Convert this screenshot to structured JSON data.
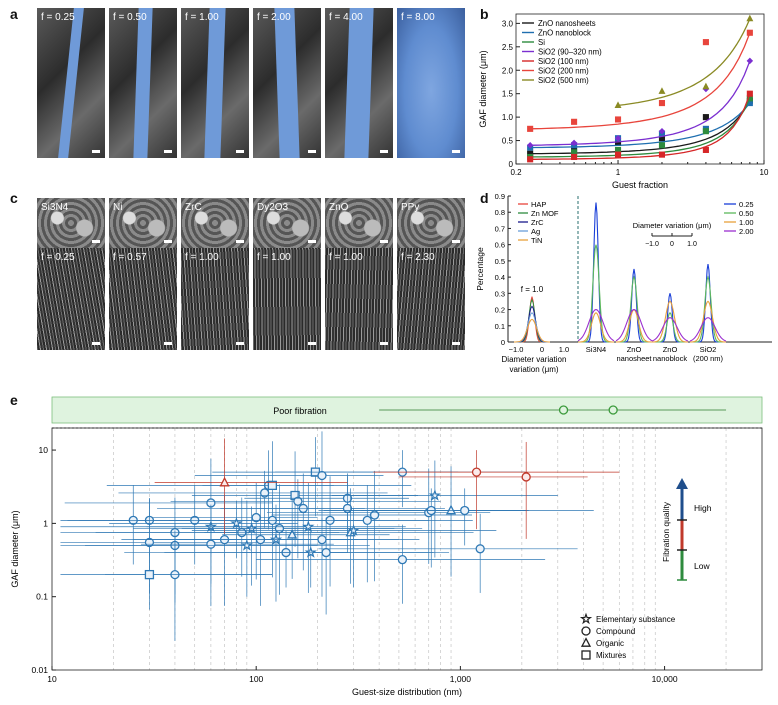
{
  "panels": {
    "a": "a",
    "b": "b",
    "c": "c",
    "d": "d",
    "e": "e"
  },
  "panel_a": {
    "tags": [
      "f = 0.25",
      "f = 0.50",
      "f = 1.00",
      "f = 2.00",
      "f = 4.00",
      "f = 8.00"
    ]
  },
  "panel_c": {
    "top_tags": [
      "Si3N4",
      "Ni",
      "ZrC",
      "Dy2O3",
      "ZnO",
      "PPy"
    ],
    "bottom_tags": [
      "f = 0.25",
      "f = 0.57",
      "f = 1.00",
      "f = 1.00",
      "f = 1.00",
      "f = 2.30"
    ]
  },
  "chart_data": [
    {
      "id": "b",
      "type": "scatter",
      "xlabel": "Guest fraction",
      "ylabel": "GAF diameter (μm)",
      "xscale": "log",
      "xlim": [
        0.2,
        10
      ],
      "ylim": [
        0,
        3.2
      ],
      "xticks": [
        "0.2",
        "1",
        "10"
      ],
      "yticks": [
        "0",
        "0.5",
        "1.0",
        "1.5",
        "2.0",
        "2.5",
        "3.0"
      ],
      "legend_position": "upper-left",
      "series": [
        {
          "name": "ZnO nanosheets",
          "color": "#1a1a1a",
          "marker": "square",
          "x": [
            0.25,
            0.5,
            1,
            2,
            4,
            8
          ],
          "y": [
            0.22,
            0.3,
            0.45,
            0.55,
            1.0,
            1.35
          ]
        },
        {
          "name": "ZnO nanoblock",
          "color": "#1f6fb0",
          "marker": "square",
          "x": [
            0.25,
            0.5,
            1,
            2,
            4,
            8
          ],
          "y": [
            0.35,
            0.4,
            0.55,
            0.65,
            0.75,
            1.3
          ]
        },
        {
          "name": "Si",
          "color": "#2e8b3e",
          "marker": "square",
          "x": [
            0.25,
            0.5,
            1,
            2,
            4,
            8
          ],
          "y": [
            0.15,
            0.25,
            0.3,
            0.4,
            0.7,
            1.4
          ]
        },
        {
          "name": "SiO2 (90–320 nm)",
          "color": "#7b2fd0",
          "marker": "diamond",
          "x": [
            0.25,
            0.5,
            1,
            2,
            4,
            8
          ],
          "y": [
            0.4,
            0.45,
            0.55,
            0.7,
            1.6,
            2.2
          ]
        },
        {
          "name": "SiO2 (100 nm)",
          "color": "#d62728",
          "marker": "square",
          "x": [
            0.25,
            0.5,
            1,
            2,
            4,
            8
          ],
          "y": [
            0.1,
            0.15,
            0.2,
            0.2,
            0.3,
            1.5
          ]
        },
        {
          "name": "SiO2 (200 nm)",
          "color": "#e8453c",
          "marker": "square",
          "x": [
            0.25,
            0.5,
            1,
            2,
            4,
            8
          ],
          "y": [
            0.75,
            0.9,
            0.95,
            1.3,
            2.6,
            2.8
          ]
        },
        {
          "name": "SiO2 (500 nm)",
          "color": "#8a8a24",
          "marker": "triangle",
          "x": [
            1,
            2,
            4,
            8
          ],
          "y": [
            1.25,
            1.55,
            1.65,
            3.1
          ]
        }
      ]
    },
    {
      "id": "d",
      "type": "line",
      "ylabel": "Percentage",
      "yticks": [
        "0",
        "0.1",
        "0.2",
        "0.3",
        "0.4",
        "0.5",
        "0.6",
        "0.7",
        "0.8",
        "0.9"
      ],
      "ylim": [
        0,
        0.9
      ],
      "left_inset_xlabel": "Diameter variation (μm)",
      "left_inset_xticks": [
        "−1.0",
        "0",
        "1.0"
      ],
      "annotation": "f = 1.0",
      "group_labels": [
        "Si3N4",
        "ZnO nanosheet",
        "ZnO nanoblock",
        "SiO2 (200 nm)"
      ],
      "legend_left": [
        {
          "name": "HAP",
          "color": "#e8453c"
        },
        {
          "name": "Zn MOF",
          "color": "#2e8b3e"
        },
        {
          "name": "ZrC",
          "color": "#1a1a8c"
        },
        {
          "name": "Ag",
          "color": "#6a9fd8"
        },
        {
          "name": "TiN",
          "color": "#e8a03c"
        }
      ],
      "legend_right": [
        {
          "name": "0.25",
          "color": "#1a3fd8"
        },
        {
          "name": "0.50",
          "color": "#5cb85c"
        },
        {
          "name": "1.00",
          "color": "#e8a03c"
        },
        {
          "name": "2.00",
          "color": "#9b30d0"
        }
      ],
      "inset_title": "Diameter variation (μm)",
      "inset_ticks": [
        "−1.0",
        "0",
        "1.0"
      ],
      "groups": [
        {
          "name": "Si3N4",
          "peaks": [
            0.86,
            0.6,
            0.18,
            0.2
          ]
        },
        {
          "name": "ZnO nanosheet",
          "peaks": [
            0.45,
            0.4,
            0.2,
            0.2
          ]
        },
        {
          "name": "ZnO nanoblock",
          "peaks": [
            0.3,
            0.18,
            0.25,
            0.15
          ]
        },
        {
          "name": "SiO2 (200 nm)",
          "peaks": [
            0.48,
            0.4,
            0.25,
            0.15
          ]
        }
      ]
    },
    {
      "id": "e",
      "type": "scatter",
      "xlabel": "Guest-size distribution (nm)",
      "ylabel": "GAF diameter (μm)",
      "xscale": "log",
      "yscale": "log",
      "xlim": [
        10,
        30000
      ],
      "ylim": [
        0.01,
        20
      ],
      "xticks": [
        "10",
        "100",
        "1,000",
        "10,000"
      ],
      "yticks": [
        "0.01",
        "0.1",
        "1",
        "10"
      ],
      "poor_fibration_label": "Poor fibration",
      "legend": [
        "Elementary substance",
        "Compound",
        "Organic",
        "Mixtures"
      ],
      "quality_labels": {
        "axis": "Fibration quality",
        "high": "High",
        "low": "Low"
      },
      "points": [
        {
          "x": 30,
          "y": 1.1,
          "m": "circle"
        },
        {
          "x": 25,
          "y": 1.1,
          "m": "circle"
        },
        {
          "x": 30,
          "y": 0.55,
          "m": "circle"
        },
        {
          "x": 40,
          "y": 0.5,
          "m": "circle"
        },
        {
          "x": 40,
          "y": 0.75,
          "m": "circle"
        },
        {
          "x": 40,
          "y": 0.2,
          "m": "circle"
        },
        {
          "x": 30,
          "y": 0.2,
          "m": "square"
        },
        {
          "x": 50,
          "y": 1.1,
          "m": "circle"
        },
        {
          "x": 60,
          "y": 1.9,
          "m": "circle"
        },
        {
          "x": 60,
          "y": 0.9,
          "m": "star"
        },
        {
          "x": 60,
          "y": 0.52,
          "m": "circle"
        },
        {
          "x": 70,
          "y": 0.6,
          "m": "circle"
        },
        {
          "x": 80,
          "y": 1.0,
          "m": "star"
        },
        {
          "x": 85,
          "y": 0.75,
          "m": "circle"
        },
        {
          "x": 90,
          "y": 0.5,
          "m": "star"
        },
        {
          "x": 95,
          "y": 0.85,
          "m": "star"
        },
        {
          "x": 100,
          "y": 1.2,
          "m": "circle"
        },
        {
          "x": 105,
          "y": 0.6,
          "m": "circle"
        },
        {
          "x": 110,
          "y": 2.6,
          "m": "circle"
        },
        {
          "x": 115,
          "y": 3.3,
          "m": "circle"
        },
        {
          "x": 120,
          "y": 3.3,
          "m": "square"
        },
        {
          "x": 120,
          "y": 1.1,
          "m": "circle"
        },
        {
          "x": 125,
          "y": 0.6,
          "m": "star"
        },
        {
          "x": 130,
          "y": 0.85,
          "m": "circle"
        },
        {
          "x": 140,
          "y": 0.4,
          "m": "circle"
        },
        {
          "x": 150,
          "y": 0.7,
          "m": "triangle"
        },
        {
          "x": 155,
          "y": 2.4,
          "m": "square"
        },
        {
          "x": 160,
          "y": 2.0,
          "m": "circle"
        },
        {
          "x": 170,
          "y": 1.6,
          "m": "circle"
        },
        {
          "x": 180,
          "y": 0.9,
          "m": "star"
        },
        {
          "x": 185,
          "y": 0.4,
          "m": "star"
        },
        {
          "x": 195,
          "y": 5.0,
          "m": "square"
        },
        {
          "x": 210,
          "y": 4.5,
          "m": "circle"
        },
        {
          "x": 210,
          "y": 0.6,
          "m": "circle"
        },
        {
          "x": 220,
          "y": 0.4,
          "m": "circle"
        },
        {
          "x": 230,
          "y": 1.1,
          "m": "circle"
        },
        {
          "x": 280,
          "y": 2.2,
          "m": "circle"
        },
        {
          "x": 280,
          "y": 1.6,
          "m": "circle"
        },
        {
          "x": 290,
          "y": 0.75,
          "m": "triangle"
        },
        {
          "x": 300,
          "y": 0.8,
          "m": "star"
        },
        {
          "x": 350,
          "y": 1.1,
          "m": "circle"
        },
        {
          "x": 380,
          "y": 1.3,
          "m": "circle"
        },
        {
          "x": 520,
          "y": 5.0,
          "m": "circle"
        },
        {
          "x": 520,
          "y": 0.32,
          "m": "circle"
        },
        {
          "x": 700,
          "y": 1.4,
          "m": "circle"
        },
        {
          "x": 720,
          "y": 1.5,
          "m": "circle"
        },
        {
          "x": 750,
          "y": 2.4,
          "m": "star"
        },
        {
          "x": 900,
          "y": 1.5,
          "m": "triangle"
        },
        {
          "x": 1050,
          "y": 1.5,
          "m": "circle"
        },
        {
          "x": 1250,
          "y": 0.45,
          "m": "circle"
        },
        {
          "x": 70,
          "y": 3.6,
          "m": "triangle",
          "red": true
        },
        {
          "x": 1200,
          "y": 5.0,
          "m": "circle",
          "red": true
        },
        {
          "x": 2100,
          "y": 4.3,
          "m": "circle",
          "red": true
        }
      ],
      "poor_points": [
        {
          "x": 3200,
          "m": "circle"
        },
        {
          "x": 5600,
          "m": "circle"
        }
      ]
    }
  ]
}
